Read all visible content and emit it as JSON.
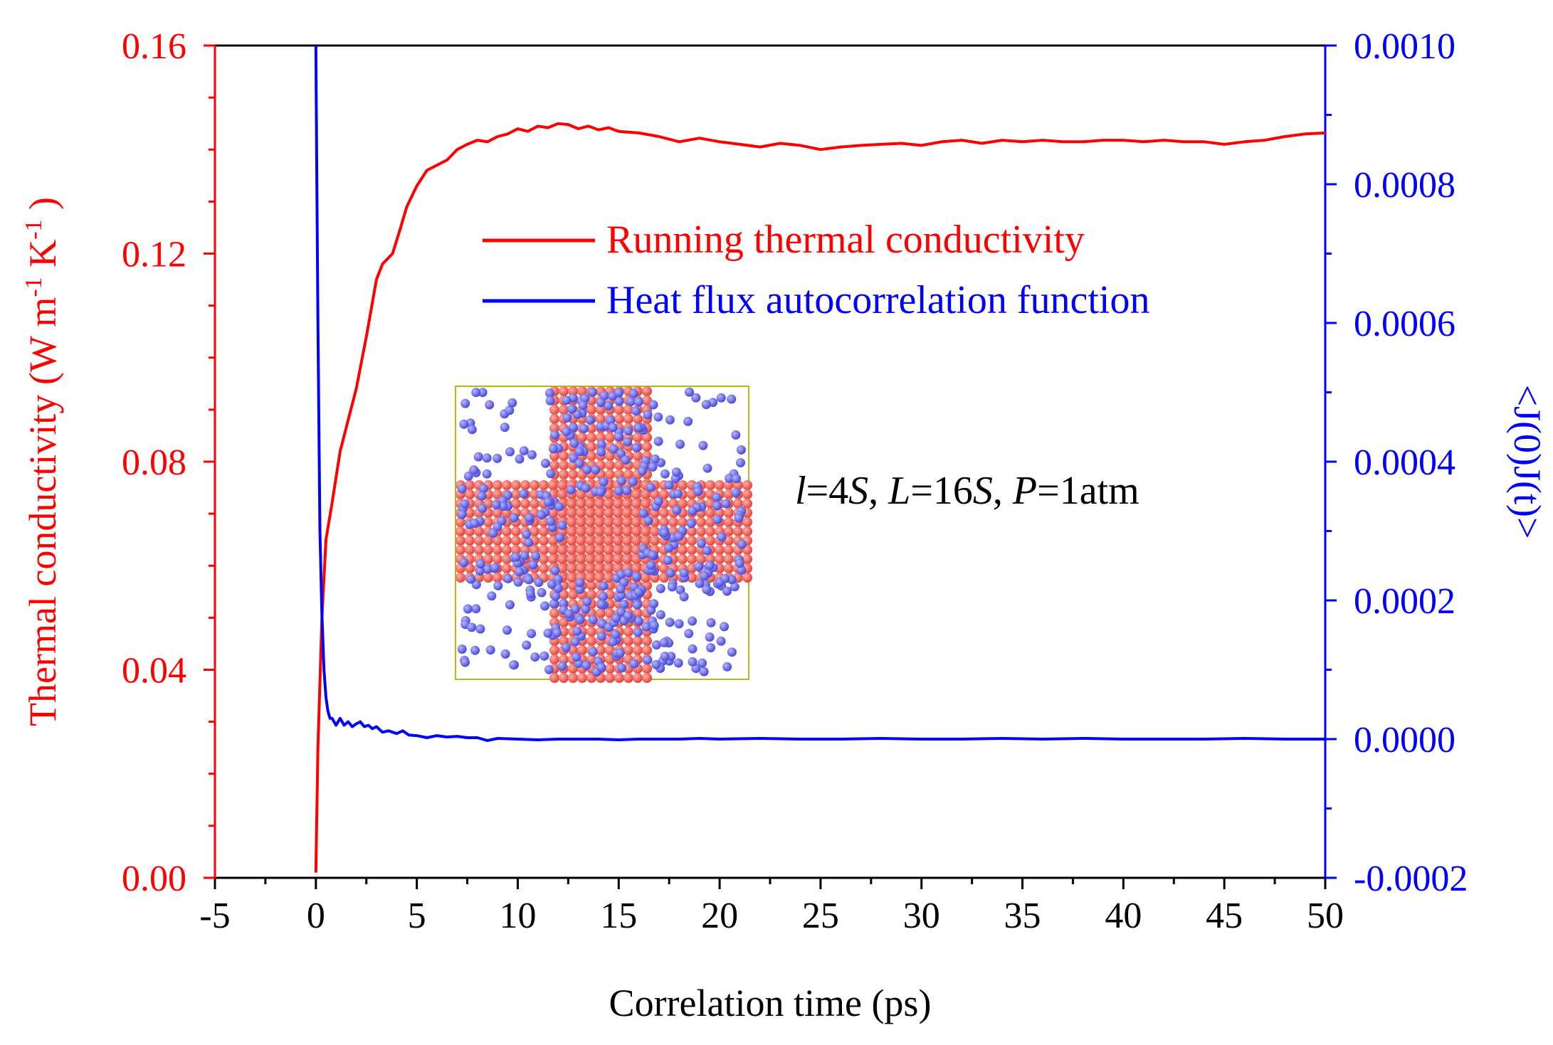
{
  "chart_data": {
    "type": "line",
    "xlabel": "Correlation time (ps)",
    "ylabel_left": {
      "main": "Thermal conductivity (W m",
      "sup1": "-1",
      "mid": "K",
      "sup2": "-1",
      "end": ")"
    },
    "ylabel_right": "<J(0)J(t)>",
    "xlim": [
      -5,
      50
    ],
    "ylim_left": [
      0,
      0.16
    ],
    "ylim_right": [
      -0.0002,
      0.001
    ],
    "x_ticks": [
      -5,
      0,
      5,
      10,
      15,
      20,
      25,
      30,
      35,
      40,
      45,
      50
    ],
    "x_tick_labels": [
      "-5",
      "0",
      "5",
      "10",
      "15",
      "20",
      "25",
      "30",
      "35",
      "40",
      "45",
      "50"
    ],
    "y_left_ticks": [
      0,
      0.04,
      0.08,
      0.12,
      0.16
    ],
    "y_left_tick_labels": [
      "0.00",
      "0.04",
      "0.08",
      "0.12",
      "0.16"
    ],
    "y_right_ticks": [
      -0.0002,
      0,
      0.0002,
      0.0004,
      0.0006,
      0.0008,
      0.001
    ],
    "y_right_tick_labels": [
      "-0.0002",
      "0.0000",
      "0.0002",
      "0.0004",
      "0.0006",
      "0.0008",
      "0.0010"
    ],
    "annotation": {
      "l_var": "l",
      "l_val": "=4",
      "l_unit": "S",
      "sep1": ", ",
      "L_var": "L",
      "L_val": "=16",
      "L_unit": "S",
      "sep2": ", ",
      "P_var": "P",
      "P_val": "=1atm"
    },
    "series": [
      {
        "name": "Running thermal conductivity",
        "axis": "left",
        "color": "#ff0000",
        "x": [
          0,
          0.1,
          0.3,
          0.5,
          0.8,
          1.2,
          1.6,
          2,
          2.5,
          3,
          3.3,
          3.8,
          4.2,
          4.5,
          5,
          5.5,
          6,
          6.5,
          7,
          7.5,
          8,
          8.5,
          9,
          9.5,
          10,
          10.5,
          11,
          11.5,
          12,
          12.5,
          13,
          13.5,
          14,
          14.5,
          15,
          16,
          17,
          18,
          19,
          20,
          21,
          22,
          23,
          24,
          25,
          26,
          27,
          28,
          29,
          30,
          31,
          32,
          33,
          34,
          35,
          36,
          37,
          38,
          39,
          40,
          41,
          42,
          43,
          44,
          45,
          46,
          47,
          48,
          49,
          50
        ],
        "values": [
          0.001,
          0.025,
          0.05,
          0.065,
          0.072,
          0.082,
          0.088,
          0.094,
          0.104,
          0.115,
          0.118,
          0.12,
          0.125,
          0.129,
          0.133,
          0.136,
          0.137,
          0.138,
          0.14,
          0.141,
          0.1418,
          0.1415,
          0.1425,
          0.143,
          0.144,
          0.1435,
          0.1445,
          0.1442,
          0.145,
          0.1448,
          0.144,
          0.1445,
          0.1438,
          0.1442,
          0.1435,
          0.1432,
          0.1425,
          0.1415,
          0.1422,
          0.1415,
          0.141,
          0.1405,
          0.1412,
          0.1408,
          0.14,
          0.1405,
          0.1408,
          0.141,
          0.1412,
          0.1408,
          0.1415,
          0.1418,
          0.1412,
          0.1418,
          0.1415,
          0.1418,
          0.1415,
          0.1415,
          0.1418,
          0.1418,
          0.1415,
          0.1418,
          0.1415,
          0.1415,
          0.141,
          0.1415,
          0.1418,
          0.1425,
          0.143,
          0.1432
        ]
      },
      {
        "name": "Heat flux autocorrelation function",
        "axis": "right",
        "color": "#0000ff",
        "x": [
          0,
          0.05,
          0.1,
          0.15,
          0.2,
          0.3,
          0.4,
          0.5,
          0.6,
          0.7,
          0.8,
          1.0,
          1.2,
          1.4,
          1.6,
          1.8,
          2.0,
          2.2,
          2.4,
          2.6,
          2.8,
          3.0,
          3.3,
          3.6,
          4.0,
          4.3,
          4.6,
          5.0,
          5.5,
          6.0,
          6.5,
          7.0,
          7.5,
          8.0,
          8.5,
          9.0,
          10,
          11,
          12,
          13,
          14,
          15,
          16,
          17,
          18,
          19,
          20,
          22,
          24,
          26,
          28,
          30,
          32,
          34,
          36,
          38,
          40,
          42,
          44,
          46,
          48,
          49,
          50
        ],
        "values": [
          0.001,
          0.0008,
          0.0006,
          0.00045,
          0.0003,
          0.00018,
          0.0001,
          6e-05,
          4e-05,
          3e-05,
          3e-05,
          2e-05,
          3e-05,
          2e-05,
          2.5e-05,
          1.8e-05,
          2.2e-05,
          2.5e-05,
          1.8e-05,
          2e-05,
          1.5e-05,
          1.8e-05,
          1e-05,
          1.2e-05,
          8e-06,
          1.2e-05,
          6e-06,
          5e-06,
          2e-06,
          5e-06,
          3e-06,
          4e-06,
          2e-06,
          2e-06,
          -2e-06,
          1e-06,
          0.0,
          -1e-06,
          0.0,
          0.0,
          0.0,
          -1e-06,
          0.0,
          0.0,
          0.0,
          1e-06,
          0.0,
          1e-06,
          0.0,
          0.0,
          1e-06,
          0.0,
          0.0,
          1e-06,
          0.0,
          1e-06,
          0.0,
          0.0,
          0.0,
          1e-06,
          0.0,
          0.0,
          0.0
        ]
      }
    ]
  }
}
